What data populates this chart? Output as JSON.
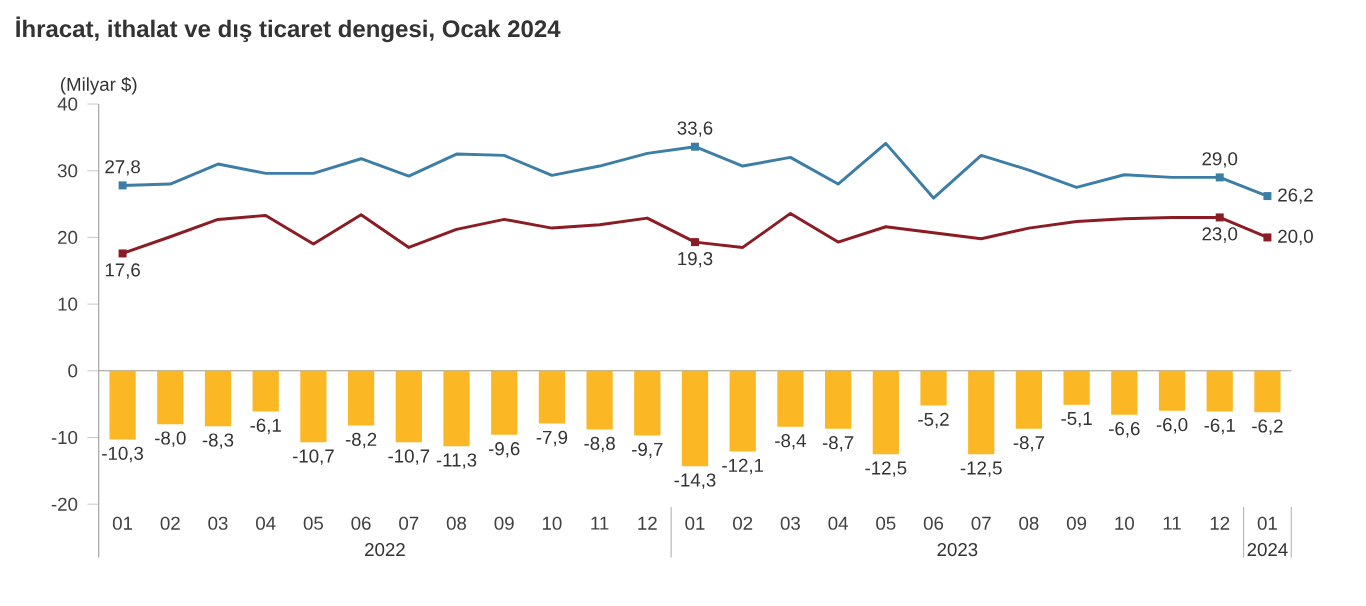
{
  "chart_data": {
    "type": "line",
    "title": "İhracat, ithalat ve dış ticaret dengesi, Ocak 2024",
    "ylabel": "(Milyar $)",
    "categories": [
      "01",
      "02",
      "03",
      "04",
      "05",
      "06",
      "07",
      "08",
      "09",
      "10",
      "11",
      "12",
      "01",
      "02",
      "03",
      "04",
      "05",
      "06",
      "07",
      "08",
      "09",
      "10",
      "11",
      "12",
      "01"
    ],
    "annotations": [
      "2022",
      "2023",
      "2024"
    ],
    "ylim": [
      -28,
      40
    ],
    "yticks": [
      -20,
      -10,
      0,
      10,
      20,
      30,
      40
    ],
    "series": [
      {
        "color": "#3d7ea6",
        "values": [
          27.8,
          28.0,
          31.0,
          29.6,
          29.6,
          31.8,
          29.2,
          32.5,
          32.3,
          29.3,
          30.7,
          32.6,
          33.6,
          30.7,
          32.0,
          28.0,
          34.1,
          25.9,
          32.3,
          30.1,
          27.5,
          29.4,
          29.0,
          29.0,
          26.2
        ],
        "value_labels": [
          "27,8",
          null,
          null,
          null,
          null,
          null,
          null,
          null,
          null,
          null,
          null,
          null,
          "33,6",
          null,
          null,
          null,
          null,
          null,
          null,
          null,
          null,
          null,
          null,
          "29,0",
          "26,2"
        ]
      },
      {
        "color": "#8b1c24",
        "values": [
          17.6,
          20.1,
          22.7,
          23.3,
          19.0,
          23.4,
          18.5,
          21.2,
          22.7,
          21.4,
          21.9,
          22.9,
          19.3,
          18.5,
          23.6,
          19.3,
          21.6,
          20.7,
          19.8,
          21.4,
          22.4,
          22.8,
          23.0,
          23.0,
          20.0
        ],
        "value_labels": [
          "17,6",
          null,
          null,
          null,
          null,
          null,
          null,
          null,
          null,
          null,
          null,
          null,
          "19,3",
          null,
          null,
          null,
          null,
          null,
          null,
          null,
          null,
          null,
          null,
          "23,0",
          "20,0"
        ]
      },
      {
        "type": "bar",
        "color": "#fbb824",
        "values": [
          -10.3,
          -8.0,
          -8.3,
          -6.1,
          -10.7,
          -8.2,
          -10.7,
          -11.3,
          -9.6,
          -7.9,
          -8.8,
          -9.7,
          -14.3,
          -12.1,
          -8.4,
          -8.7,
          -12.5,
          -5.2,
          -12.5,
          -8.7,
          -5.1,
          -6.6,
          -6.0,
          -6.1,
          -6.2
        ],
        "value_labels": [
          "-10,3",
          "-8,0",
          "-8,3",
          "-6,1",
          "-10,7",
          "-8,2",
          "-10,7",
          "-11,3",
          "-9,6",
          "-7,9",
          "-8,8",
          "-9,7",
          "-14,3",
          "-12,1",
          "-8,4",
          "-8,7",
          "-12,5",
          "-5,2",
          "-12,5",
          "-8,7",
          "-5,1",
          "-6,6",
          "-6,0",
          "-6,1",
          "-6,2"
        ]
      }
    ]
  }
}
